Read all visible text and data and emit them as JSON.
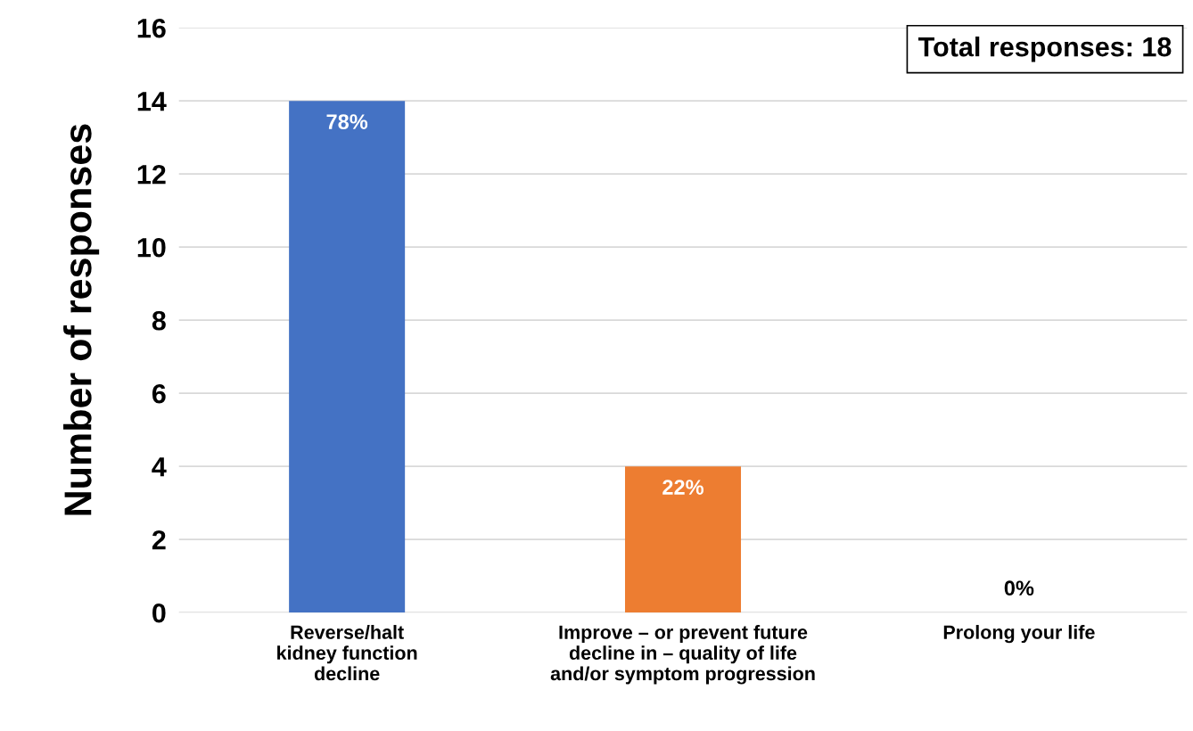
{
  "chart_data": {
    "type": "bar",
    "ylabel": "Number of responses",
    "categories": [
      "Reverse/halt\nkidney function\ndecline",
      "Improve – or prevent future\ndecline in – quality of life\nand/or symptom progression",
      "Prolong your life"
    ],
    "values": [
      14,
      4,
      0
    ],
    "colors": [
      "#4472c4",
      "#ed7d31",
      "#a5a5a5"
    ],
    "ylim": [
      0,
      16
    ],
    "yticks": [
      0,
      2,
      4,
      6,
      8,
      10,
      12,
      14,
      16
    ],
    "grid": "y",
    "annotations": [
      "Total responses: 18",
      {
        "text": "78%",
        "x": "Reverse/halt\nkidney function\ndecline",
        "y": 14
      },
      {
        "text": "22%",
        "x": "Improve – or prevent future\ndecline in – quality of life\nand/or symptom progression",
        "y": 4
      },
      {
        "text": "0%",
        "x": "Prolong your life",
        "y": 0
      }
    ]
  }
}
